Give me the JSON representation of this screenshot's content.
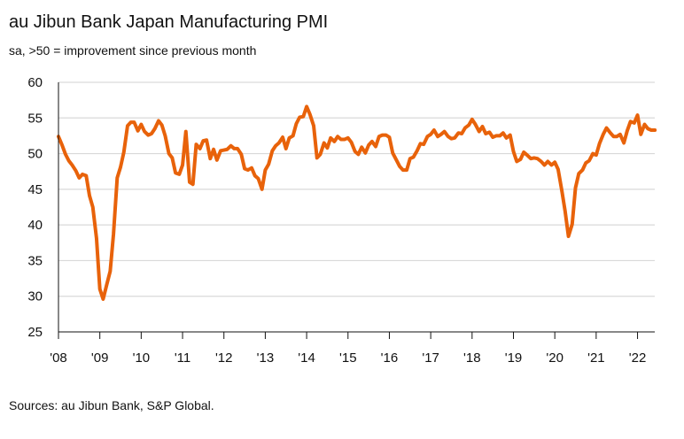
{
  "header": {
    "title": "au Jibun Bank Japan Manufacturing PMI",
    "subtitle": "sa, >50 = improvement since previous month"
  },
  "footer": {
    "source": "Sources: au Jibun Bank, S&P Global."
  },
  "colors": {
    "series": "#e8620a",
    "grid": "#d9d9d9",
    "axis": "#111111"
  },
  "chart_data": {
    "type": "line",
    "title": "au Jibun Bank Japan Manufacturing PMI",
    "subtitle": "sa, >50 = improvement since previous month",
    "xlabel": "",
    "ylabel": "",
    "ylim": [
      25,
      60
    ],
    "yticks": [
      25,
      30,
      35,
      40,
      45,
      50,
      55,
      60
    ],
    "xlim": [
      2008.0,
      2022.4167
    ],
    "xticks": [
      {
        "label": "'08",
        "value": 2008
      },
      {
        "label": "'09",
        "value": 2009
      },
      {
        "label": "'10",
        "value": 2010
      },
      {
        "label": "'11",
        "value": 2011
      },
      {
        "label": "'12",
        "value": 2012
      },
      {
        "label": "'13",
        "value": 2013
      },
      {
        "label": "'14",
        "value": 2014
      },
      {
        "label": "'15",
        "value": 2015
      },
      {
        "label": "'16",
        "value": 2016
      },
      {
        "label": "'17",
        "value": 2017
      },
      {
        "label": "'18",
        "value": 2018
      },
      {
        "label": "'19",
        "value": 2019
      },
      {
        "label": "'20",
        "value": 2020
      },
      {
        "label": "'21",
        "value": 2021
      },
      {
        "label": "'22",
        "value": 2022
      }
    ],
    "grid": "horizontal",
    "legend": "none",
    "series": [
      {
        "x": [
          2008.0,
          2008.08,
          2008.17,
          2008.25,
          2008.33,
          2008.42,
          2008.5,
          2008.58,
          2008.67,
          2008.75,
          2008.83,
          2008.92,
          2009.0,
          2009.08,
          2009.17,
          2009.25,
          2009.33,
          2009.42,
          2009.5,
          2009.58,
          2009.67,
          2009.75,
          2009.83,
          2009.92,
          2010.0,
          2010.08,
          2010.17,
          2010.25,
          2010.33,
          2010.42,
          2010.5,
          2010.58,
          2010.67,
          2010.75,
          2010.83,
          2010.92,
          2011.0,
          2011.08,
          2011.17,
          2011.25,
          2011.33,
          2011.42,
          2011.5,
          2011.58,
          2011.67,
          2011.75,
          2011.83,
          2011.92,
          2012.0,
          2012.08,
          2012.17,
          2012.25,
          2012.33,
          2012.42,
          2012.5,
          2012.58,
          2012.67,
          2012.75,
          2012.83,
          2012.92,
          2013.0,
          2013.08,
          2013.17,
          2013.25,
          2013.33,
          2013.42,
          2013.5,
          2013.58,
          2013.67,
          2013.75,
          2013.83,
          2013.92,
          2014.0,
          2014.08,
          2014.17,
          2014.25,
          2014.33,
          2014.42,
          2014.5,
          2014.58,
          2014.67,
          2014.75,
          2014.83,
          2014.92,
          2015.0,
          2015.08,
          2015.17,
          2015.25,
          2015.33,
          2015.42,
          2015.5,
          2015.58,
          2015.67,
          2015.75,
          2015.83,
          2015.92,
          2016.0,
          2016.08,
          2016.17,
          2016.25,
          2016.33,
          2016.42,
          2016.5,
          2016.58,
          2016.67,
          2016.75,
          2016.83,
          2016.92,
          2017.0,
          2017.08,
          2017.17,
          2017.25,
          2017.33,
          2017.42,
          2017.5,
          2017.58,
          2017.67,
          2017.75,
          2017.83,
          2017.92,
          2018.0,
          2018.08,
          2018.17,
          2018.25,
          2018.33,
          2018.42,
          2018.5,
          2018.58,
          2018.67,
          2018.75,
          2018.83,
          2018.92,
          2019.0,
          2019.08,
          2019.17,
          2019.25,
          2019.33,
          2019.42,
          2019.5,
          2019.58,
          2019.67,
          2019.75,
          2019.83,
          2019.92,
          2020.0,
          2020.08,
          2020.17,
          2020.25,
          2020.33,
          2020.42,
          2020.5,
          2020.58,
          2020.67,
          2020.75,
          2020.83,
          2020.92,
          2021.0,
          2021.08,
          2021.17,
          2021.25,
          2021.33,
          2021.42,
          2021.5,
          2021.58,
          2021.67,
          2021.75,
          2021.83,
          2021.92,
          2022.0,
          2022.08,
          2022.17,
          2022.25,
          2022.33,
          2022.42
        ],
        "values": [
          52.4,
          51.3,
          49.9,
          49.0,
          48.4,
          47.6,
          46.6,
          47.1,
          46.9,
          44.1,
          42.5,
          38.1,
          31.0,
          29.6,
          31.7,
          33.5,
          38.7,
          46.6,
          48.1,
          50.2,
          53.9,
          54.4,
          54.4,
          53.2,
          54.1,
          53.1,
          52.6,
          52.8,
          53.5,
          54.6,
          54.0,
          52.5,
          50.0,
          49.4,
          47.3,
          47.1,
          48.4,
          53.1,
          46.0,
          45.7,
          51.3,
          50.7,
          51.8,
          51.9,
          49.3,
          50.6,
          49.1,
          50.4,
          50.5,
          50.6,
          51.1,
          50.7,
          50.7,
          49.9,
          47.9,
          47.7,
          48.0,
          46.9,
          46.5,
          45.0,
          47.7,
          48.5,
          50.4,
          51.1,
          51.5,
          52.3,
          50.7,
          52.2,
          52.5,
          54.2,
          55.1,
          55.2,
          56.6,
          55.5,
          53.9,
          49.4,
          49.9,
          51.5,
          50.8,
          52.2,
          51.7,
          52.4,
          52.0,
          52.0,
          52.2,
          51.6,
          50.3,
          49.9,
          50.9,
          50.1,
          51.2,
          51.7,
          51.0,
          52.4,
          52.6,
          52.6,
          52.3,
          50.1,
          49.1,
          48.2,
          47.7,
          47.7,
          49.3,
          49.5,
          50.4,
          51.4,
          51.3,
          52.4,
          52.7,
          53.3,
          52.4,
          52.7,
          53.1,
          52.4,
          52.1,
          52.2,
          52.9,
          52.8,
          53.6,
          54.0,
          54.8,
          54.1,
          53.1,
          53.8,
          52.8,
          53.0,
          52.3,
          52.5,
          52.5,
          52.9,
          52.2,
          52.6,
          50.3,
          48.9,
          49.2,
          50.2,
          49.8,
          49.3,
          49.4,
          49.3,
          48.9,
          48.4,
          48.9,
          48.4,
          48.8,
          47.8,
          44.8,
          41.9,
          38.4,
          40.1,
          45.2,
          47.2,
          47.7,
          48.7,
          49.0,
          50.0,
          49.8,
          51.4,
          52.7,
          53.6,
          53.0,
          52.4,
          52.4,
          52.7,
          51.5,
          53.2,
          54.5,
          54.3,
          55.4,
          52.7,
          54.1,
          53.5,
          53.3,
          53.3
        ]
      }
    ]
  }
}
